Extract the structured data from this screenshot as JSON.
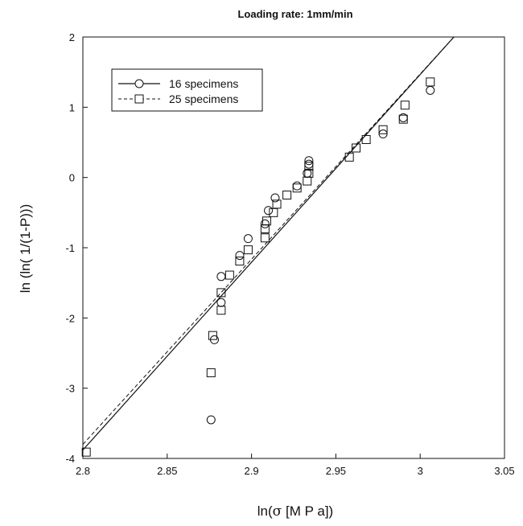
{
  "chart_data": {
    "type": "scatter",
    "title": "Loading rate: 1mm/min",
    "xlabel_prefix": "ln(",
    "xlabel_symbol": "σ",
    "xlabel_suffix": " [M P a])",
    "ylabel": "ln (ln( 1/(1-P)))",
    "xlim": [
      2.8,
      3.05
    ],
    "ylim": [
      -4,
      2
    ],
    "x_ticks": [
      2.8,
      2.85,
      2.9,
      2.95,
      3.0,
      3.05
    ],
    "x_tick_labels": [
      "2.8",
      "2.85",
      "2.9",
      "2.95",
      "3",
      "3.05"
    ],
    "y_ticks": [
      -4,
      -3,
      -2,
      -1,
      0,
      1,
      2
    ],
    "y_tick_labels": [
      "-4",
      "-3",
      "-2",
      "-1",
      "0",
      "1",
      "2"
    ],
    "grid": false,
    "legend_position": "top-left",
    "series": [
      {
        "name": "16 specimens",
        "marker": "circle",
        "line_style": "solid",
        "points": [
          [
            2.876,
            -3.45
          ],
          [
            2.878,
            -2.31
          ],
          [
            2.882,
            -1.78
          ],
          [
            2.882,
            -1.41
          ],
          [
            2.893,
            -1.11
          ],
          [
            2.898,
            -0.87
          ],
          [
            2.908,
            -0.66
          ],
          [
            2.91,
            -0.47
          ],
          [
            2.914,
            -0.29
          ],
          [
            2.927,
            -0.12
          ],
          [
            2.933,
            0.06
          ],
          [
            2.934,
            0.19
          ],
          [
            2.934,
            0.24
          ],
          [
            2.978,
            0.62
          ],
          [
            2.99,
            0.85
          ],
          [
            3.006,
            1.24
          ]
        ],
        "fit_line": [
          [
            2.8,
            -3.88
          ],
          [
            3.02,
            2.0
          ]
        ]
      },
      {
        "name": "25 specimens",
        "marker": "square",
        "line_style": "dashed",
        "points": [
          [
            2.802,
            -3.91
          ],
          [
            2.876,
            -2.78
          ],
          [
            2.877,
            -2.25
          ],
          [
            2.882,
            -1.89
          ],
          [
            2.882,
            -1.64
          ],
          [
            2.887,
            -1.39
          ],
          [
            2.893,
            -1.19
          ],
          [
            2.898,
            -1.03
          ],
          [
            2.908,
            -0.86
          ],
          [
            2.908,
            -0.73
          ],
          [
            2.909,
            -0.62
          ],
          [
            2.913,
            -0.5
          ],
          [
            2.915,
            -0.38
          ],
          [
            2.921,
            -0.25
          ],
          [
            2.927,
            -0.15
          ],
          [
            2.933,
            -0.05
          ],
          [
            2.934,
            0.06
          ],
          [
            2.934,
            0.16
          ],
          [
            2.958,
            0.29
          ],
          [
            2.962,
            0.42
          ],
          [
            2.968,
            0.54
          ],
          [
            2.978,
            0.68
          ],
          [
            2.99,
            0.83
          ],
          [
            2.991,
            1.03
          ],
          [
            3.006,
            1.36
          ]
        ],
        "fit_line": [
          [
            2.8,
            -3.8
          ],
          [
            3.02,
            2.0
          ]
        ]
      }
    ]
  }
}
